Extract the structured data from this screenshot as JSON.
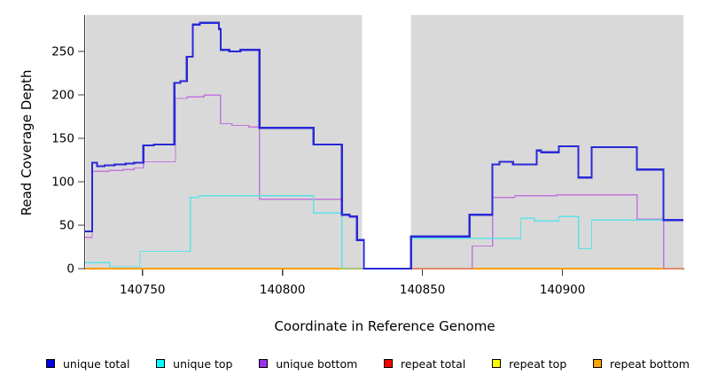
{
  "chart_data": {
    "type": "line",
    "subtype": "step-coverage",
    "title": "",
    "xlabel": "Coordinate in Reference Genome",
    "ylabel": "Read Coverage Depth",
    "xlim": [
      140729.5,
      140943.5
    ],
    "ylim": [
      0,
      292
    ],
    "xticks": [
      140750,
      140800,
      140850,
      140900
    ],
    "yticks": [
      0,
      50,
      100,
      150,
      200,
      250
    ],
    "grid": "off",
    "plot_bg_color": "#d9d9d9",
    "axis_color": "#3c3c3c",
    "coverage_gap": {
      "x0": 140828.4,
      "x1": 140845.9
    },
    "bands": [
      {
        "x0": 140729.8,
        "x1": 140828.4
      },
      {
        "x0": 140845.9,
        "x1": 140943.2
      }
    ],
    "series": [
      {
        "name": "repeat top",
        "color": "#ffff00",
        "width": 1.2,
        "points": [
          [
            140729.5,
            0
          ],
          [
            140943.2,
            0
          ]
        ]
      },
      {
        "name": "repeat total",
        "color": "#e02020",
        "width": 1.2,
        "points": [
          [
            140729.5,
            0
          ],
          [
            140943.2,
            0
          ]
        ]
      },
      {
        "name": "repeat bottom",
        "color": "#ff9d00",
        "width": 1.6,
        "points": [
          [
            140729.5,
            0
          ],
          [
            140943.2,
            0
          ]
        ]
      },
      {
        "name": "unique bottom",
        "color": "#c476dd",
        "width": 1.3,
        "points": [
          [
            140729.5,
            36
          ],
          [
            140732,
            112
          ],
          [
            140738,
            113
          ],
          [
            140743,
            114
          ],
          [
            140747,
            116
          ],
          [
            140750.3,
            123
          ],
          [
            140761.8,
            196
          ],
          [
            140766,
            198
          ],
          [
            140772,
            200
          ],
          [
            140777.8,
            167
          ],
          [
            140782,
            165
          ],
          [
            140788,
            163
          ],
          [
            140791.8,
            80
          ],
          [
            140821.2,
            0
          ],
          [
            140867.7,
            26
          ],
          [
            140875,
            82
          ],
          [
            140883,
            84
          ],
          [
            140898,
            85
          ],
          [
            140926.6,
            57
          ],
          [
            140936.1,
            0
          ],
          [
            140943.2,
            0
          ]
        ]
      },
      {
        "name": "unique top",
        "color": "#5ce2e6",
        "width": 1.3,
        "points": [
          [
            140729.5,
            7
          ],
          [
            140738.3,
            2
          ],
          [
            140749.1,
            20
          ],
          [
            140767.1,
            82
          ],
          [
            140770,
            84
          ],
          [
            140811.1,
            64
          ],
          [
            140821.2,
            0
          ],
          [
            140845.9,
            35
          ],
          [
            140885.1,
            58
          ],
          [
            140889.9,
            55
          ],
          [
            140898.7,
            60
          ],
          [
            140905.7,
            23
          ],
          [
            140910.4,
            56
          ],
          [
            140943.2,
            56
          ]
        ]
      },
      {
        "name": "unique total",
        "color": "#2929d6",
        "width": 2.2,
        "points": [
          [
            140729.5,
            43
          ],
          [
            140732,
            122
          ],
          [
            140733.8,
            118
          ],
          [
            140736.5,
            119
          ],
          [
            140740,
            120
          ],
          [
            140744,
            121
          ],
          [
            140747,
            122
          ],
          [
            140750.3,
            142
          ],
          [
            140754,
            143
          ],
          [
            140761.4,
            214
          ],
          [
            140763.5,
            216
          ],
          [
            140765.8,
            244
          ],
          [
            140768,
            281
          ],
          [
            140770.5,
            283
          ],
          [
            140777.3,
            276
          ],
          [
            140777.9,
            252
          ],
          [
            140781,
            250
          ],
          [
            140785,
            252
          ],
          [
            140791.8,
            162
          ],
          [
            140811.1,
            143
          ],
          [
            140821.2,
            62
          ],
          [
            140824,
            60
          ],
          [
            140826.6,
            33
          ],
          [
            140829.1,
            0
          ],
          [
            140845.9,
            37
          ],
          [
            140866.8,
            62
          ],
          [
            140875,
            120
          ],
          [
            140877.5,
            123
          ],
          [
            140882.3,
            120
          ],
          [
            140890.8,
            136
          ],
          [
            140892.4,
            134
          ],
          [
            140898.7,
            141
          ],
          [
            140905.7,
            105
          ],
          [
            140910.4,
            140
          ],
          [
            140926.6,
            114
          ],
          [
            140936.1,
            56
          ],
          [
            140943.2,
            56
          ]
        ]
      }
    ]
  },
  "legend": {
    "items": [
      {
        "label": "unique total",
        "color": "#0000e6"
      },
      {
        "label": "unique top",
        "color": "#00ffff"
      },
      {
        "label": "unique bottom",
        "color": "#9a2fef"
      },
      {
        "label": "repeat total",
        "color": "#ff0000"
      },
      {
        "label": "repeat top",
        "color": "#ffff00"
      },
      {
        "label": "repeat bottom",
        "color": "#ffa500"
      }
    ]
  }
}
